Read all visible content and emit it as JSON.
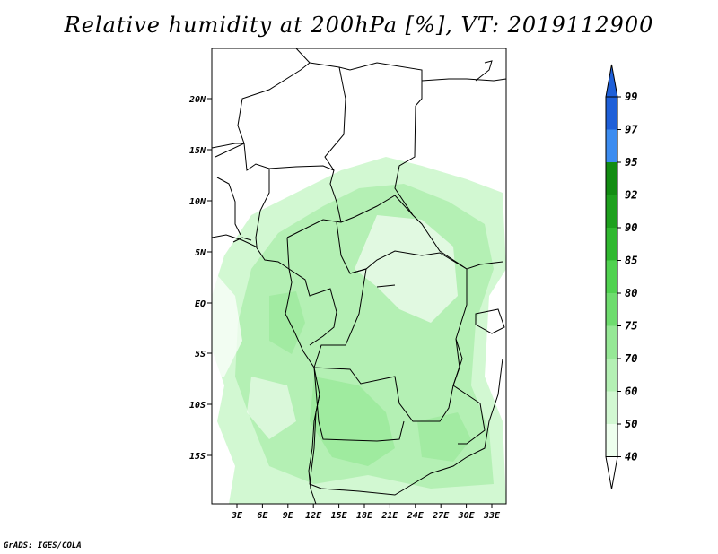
{
  "title": "Relative humidity at 200hPa [%], VT: 2019112900",
  "credit": "GrADS: IGES/COLA",
  "map": {
    "lat_labels": [
      "20N",
      "15N",
      "10N",
      "5N",
      "EQ",
      "5S",
      "10S",
      "15S"
    ],
    "lon_labels": [
      "3E",
      "6E",
      "9E",
      "12E",
      "15E",
      "18E",
      "21E",
      "24E",
      "27E",
      "30E",
      "33E"
    ]
  },
  "colorbar": {
    "labels": [
      "99",
      "97",
      "95",
      "92",
      "90",
      "85",
      "80",
      "75",
      "70",
      "60",
      "50",
      "40"
    ],
    "colors": [
      "#1E5FD8",
      "#1E5FD8",
      "#3C8CF0",
      "#128C12",
      "#1EA01E",
      "#30B830",
      "#50D250",
      "#6EDC6E",
      "#96E896",
      "#B4F0B4",
      "#D2F8D2",
      "#EEFFEE"
    ]
  }
}
